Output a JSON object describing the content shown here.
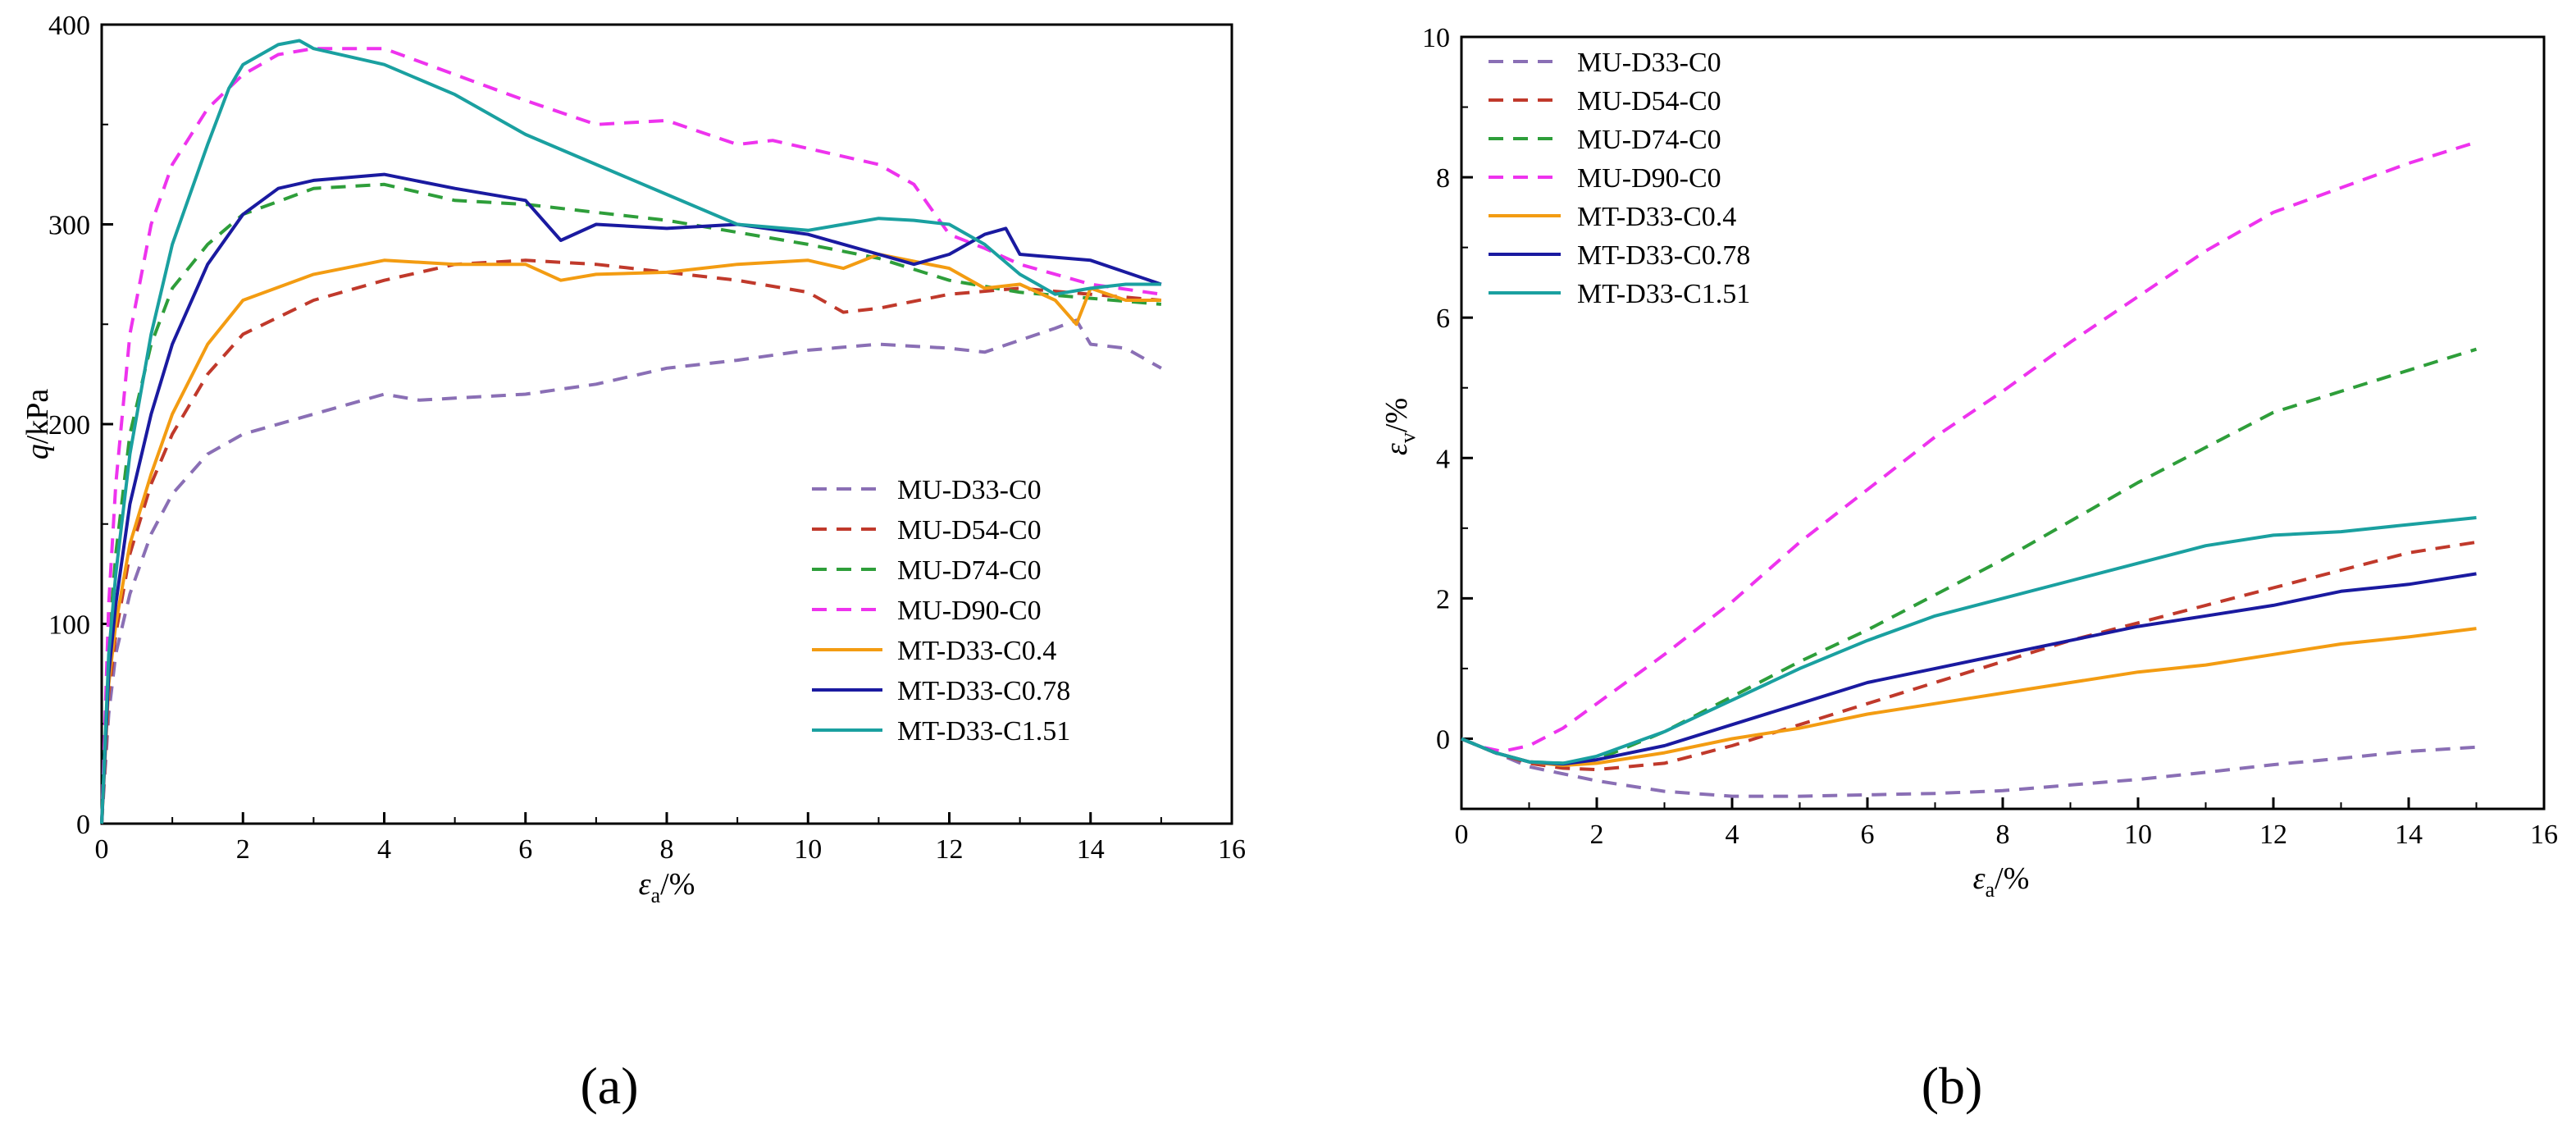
{
  "chart_data": [
    {
      "type": "line",
      "panel_label": "(a)",
      "xlabel": "εa/%",
      "ylabel": "q/kPa",
      "xlabel_parts": {
        "sym": "ε",
        "sub": "a",
        "unit": "/%"
      },
      "ylabel_parts": {
        "sym": "q",
        "unit": "/kPa"
      },
      "xlim": [
        0,
        16
      ],
      "ylim": [
        0,
        400
      ],
      "xticks": [
        "0",
        "2",
        "4",
        "6",
        "8",
        "10",
        "12",
        "14",
        "16"
      ],
      "yticks": [
        "0",
        "100",
        "200",
        "300",
        "400"
      ],
      "legend_position": "lower-right",
      "series": [
        {
          "name": "MU-D33-C0",
          "color": "#8a6fb5",
          "dash": "dash",
          "x": [
            0,
            0.1,
            0.2,
            0.4,
            0.7,
            1,
            1.5,
            2,
            3,
            4,
            4.5,
            5,
            6,
            7,
            8,
            9,
            10,
            11,
            12,
            12.5,
            13,
            13.5,
            13.8,
            14,
            14.5,
            15
          ],
          "y": [
            0,
            55,
            85,
            115,
            145,
            165,
            185,
            195,
            205,
            215,
            212,
            213,
            215,
            220,
            228,
            232,
            237,
            240,
            238,
            236,
            242,
            248,
            252,
            240,
            238,
            228
          ]
        },
        {
          "name": "MU-D54-C0",
          "color": "#c0392b",
          "dash": "dash",
          "x": [
            0,
            0.1,
            0.2,
            0.4,
            0.7,
            1,
            1.5,
            2,
            3,
            4,
            5,
            6,
            7,
            8,
            9,
            10,
            10.5,
            11,
            12,
            13,
            14,
            15
          ],
          "y": [
            0,
            65,
            95,
            135,
            170,
            195,
            225,
            245,
            262,
            272,
            280,
            282,
            280,
            276,
            272,
            266,
            256,
            258,
            265,
            268,
            265,
            262
          ]
        },
        {
          "name": "MU-D74-C0",
          "color": "#2e9e3a",
          "dash": "dash",
          "x": [
            0,
            0.1,
            0.2,
            0.4,
            0.7,
            1,
            1.5,
            2,
            3,
            4,
            5,
            6,
            7,
            8,
            9,
            10,
            11,
            12,
            13,
            14,
            15
          ],
          "y": [
            0,
            90,
            135,
            195,
            240,
            268,
            290,
            305,
            318,
            320,
            312,
            310,
            306,
            302,
            296,
            290,
            283,
            272,
            266,
            263,
            260
          ]
        },
        {
          "name": "MU-D90-C0",
          "color": "#ee33ee",
          "dash": "dash",
          "x": [
            0,
            0.1,
            0.2,
            0.4,
            0.7,
            1,
            1.5,
            2,
            2.5,
            3,
            4,
            5,
            6,
            7,
            8,
            9,
            9.5,
            10,
            11,
            11.5,
            12,
            12.5,
            13,
            14,
            15
          ],
          "y": [
            0,
            110,
            170,
            245,
            300,
            330,
            358,
            375,
            385,
            388,
            388,
            375,
            362,
            350,
            352,
            340,
            342,
            338,
            330,
            320,
            295,
            288,
            280,
            270,
            265
          ]
        },
        {
          "name": "MT-D33-C0.4",
          "color": "#f39c12",
          "dash": "solid",
          "x": [
            0,
            0.1,
            0.2,
            0.4,
            0.7,
            1,
            1.5,
            2,
            3,
            4,
            5,
            6,
            6.5,
            7,
            8,
            9,
            10,
            10.5,
            11,
            12,
            12.5,
            13,
            13.5,
            13.8,
            14,
            14.5,
            15
          ],
          "y": [
            0,
            70,
            100,
            140,
            175,
            205,
            240,
            262,
            275,
            282,
            280,
            280,
            272,
            275,
            276,
            280,
            282,
            278,
            285,
            278,
            268,
            270,
            262,
            250,
            268,
            262,
            262
          ]
        },
        {
          "name": "MT-D33-C0.78",
          "color": "#1a1aa0",
          "dash": "solid",
          "x": [
            0,
            0.1,
            0.2,
            0.4,
            0.7,
            1,
            1.5,
            2,
            2.5,
            3,
            4,
            5,
            6,
            6.5,
            7,
            8,
            9,
            10,
            11,
            11.5,
            12,
            12.5,
            12.8,
            13,
            14,
            15
          ],
          "y": [
            0,
            75,
            110,
            160,
            205,
            240,
            280,
            305,
            318,
            322,
            325,
            318,
            312,
            292,
            300,
            298,
            300,
            295,
            285,
            280,
            285,
            295,
            298,
            285,
            282,
            270
          ]
        },
        {
          "name": "MT-D33-C1.51",
          "color": "#1aa0a0",
          "dash": "solid",
          "x": [
            0,
            0.1,
            0.2,
            0.4,
            0.7,
            1,
            1.5,
            1.8,
            2,
            2.5,
            2.8,
            3,
            4,
            5,
            6,
            7,
            8,
            9,
            10,
            10.5,
            11,
            11.5,
            12,
            12.5,
            13,
            13.5,
            14,
            14.5,
            15
          ],
          "y": [
            0,
            85,
            125,
            185,
            245,
            290,
            340,
            368,
            380,
            390,
            392,
            388,
            380,
            365,
            345,
            330,
            315,
            300,
            297,
            300,
            303,
            302,
            300,
            290,
            275,
            265,
            268,
            270,
            270
          ]
        }
      ]
    },
    {
      "type": "line",
      "panel_label": "(b)",
      "xlabel": "εa/%",
      "ylabel": "εv/%",
      "xlabel_parts": {
        "sym": "ε",
        "sub": "a",
        "unit": "/%"
      },
      "ylabel_parts": {
        "sym": "ε",
        "sub": "v",
        "unit": "/%"
      },
      "xlim": [
        0,
        16
      ],
      "ylim": [
        -1,
        10
      ],
      "xticks": [
        "0",
        "2",
        "4",
        "6",
        "8",
        "10",
        "12",
        "14",
        "16"
      ],
      "yticks": [
        "0",
        "2",
        "4",
        "6",
        "8",
        "10"
      ],
      "yticks_values": [
        0,
        2,
        4,
        6,
        8,
        10
      ],
      "legend_position": "top-left",
      "series": [
        {
          "name": "MU-D33-C0",
          "color": "#8a6fb5",
          "dash": "dash",
          "x": [
            0,
            0.5,
            1,
            2,
            3,
            4,
            5,
            6,
            7,
            8,
            9,
            10,
            11,
            12,
            13,
            14,
            15
          ],
          "y": [
            0,
            -0.2,
            -0.4,
            -0.6,
            -0.75,
            -0.82,
            -0.82,
            -0.8,
            -0.78,
            -0.74,
            -0.66,
            -0.58,
            -0.48,
            -0.37,
            -0.28,
            -0.18,
            -0.12
          ]
        },
        {
          "name": "MU-D54-C0",
          "color": "#c0392b",
          "dash": "dash",
          "x": [
            0,
            0.5,
            1,
            1.5,
            2,
            3,
            4,
            5,
            6,
            7,
            8,
            9,
            10,
            11,
            12,
            13,
            14,
            15
          ],
          "y": [
            0,
            -0.2,
            -0.35,
            -0.42,
            -0.44,
            -0.35,
            -0.1,
            0.2,
            0.5,
            0.8,
            1.1,
            1.4,
            1.65,
            1.9,
            2.15,
            2.4,
            2.65,
            2.8
          ]
        },
        {
          "name": "MU-D74-C0",
          "color": "#2e9e3a",
          "dash": "dash",
          "x": [
            0,
            0.5,
            1,
            1.5,
            2,
            3,
            4,
            5,
            6,
            7,
            8,
            9,
            10,
            11,
            12,
            13,
            14,
            15
          ],
          "y": [
            0,
            -0.2,
            -0.33,
            -0.35,
            -0.3,
            0.1,
            0.6,
            1.1,
            1.55,
            2.05,
            2.55,
            3.1,
            3.65,
            4.15,
            4.65,
            4.95,
            5.25,
            5.55
          ]
        },
        {
          "name": "MU-D90-C0",
          "color": "#ee33ee",
          "dash": "dash",
          "x": [
            0,
            0.3,
            0.6,
            1,
            1.5,
            2,
            3,
            4,
            5,
            6,
            7,
            8,
            9,
            10,
            11,
            12,
            13,
            14,
            15
          ],
          "y": [
            0,
            -0.12,
            -0.18,
            -0.1,
            0.15,
            0.5,
            1.2,
            1.95,
            2.8,
            3.55,
            4.3,
            4.95,
            5.65,
            6.3,
            6.95,
            7.5,
            7.85,
            8.2,
            8.5
          ]
        },
        {
          "name": "MT-D33-C0.4",
          "color": "#f39c12",
          "dash": "solid",
          "x": [
            0,
            0.5,
            1,
            1.5,
            2,
            3,
            4,
            5,
            6,
            7,
            8,
            9,
            10,
            11,
            12,
            13,
            14,
            15
          ],
          "y": [
            0,
            -0.2,
            -0.33,
            -0.38,
            -0.35,
            -0.2,
            0,
            0.15,
            0.35,
            0.5,
            0.65,
            0.8,
            0.95,
            1.05,
            1.2,
            1.35,
            1.45,
            1.57
          ]
        },
        {
          "name": "MT-D33-C0.78",
          "color": "#1a1aa0",
          "dash": "solid",
          "x": [
            0,
            0.5,
            1,
            1.5,
            2,
            3,
            4,
            5,
            6,
            7,
            8,
            9,
            10,
            11,
            12,
            13,
            14,
            15
          ],
          "y": [
            0,
            -0.2,
            -0.33,
            -0.36,
            -0.3,
            -0.1,
            0.2,
            0.5,
            0.8,
            1.0,
            1.2,
            1.4,
            1.6,
            1.75,
            1.9,
            2.1,
            2.2,
            2.35
          ]
        },
        {
          "name": "MT-D33-C1.51",
          "color": "#1aa0a0",
          "dash": "solid",
          "x": [
            0,
            0.5,
            1,
            1.5,
            2,
            3,
            4,
            5,
            6,
            7,
            8,
            9,
            10,
            11,
            12,
            13,
            14,
            15
          ],
          "y": [
            0,
            -0.2,
            -0.33,
            -0.35,
            -0.25,
            0.1,
            0.55,
            1.0,
            1.4,
            1.75,
            2.0,
            2.25,
            2.5,
            2.75,
            2.9,
            2.95,
            3.05,
            3.15
          ]
        }
      ]
    }
  ]
}
